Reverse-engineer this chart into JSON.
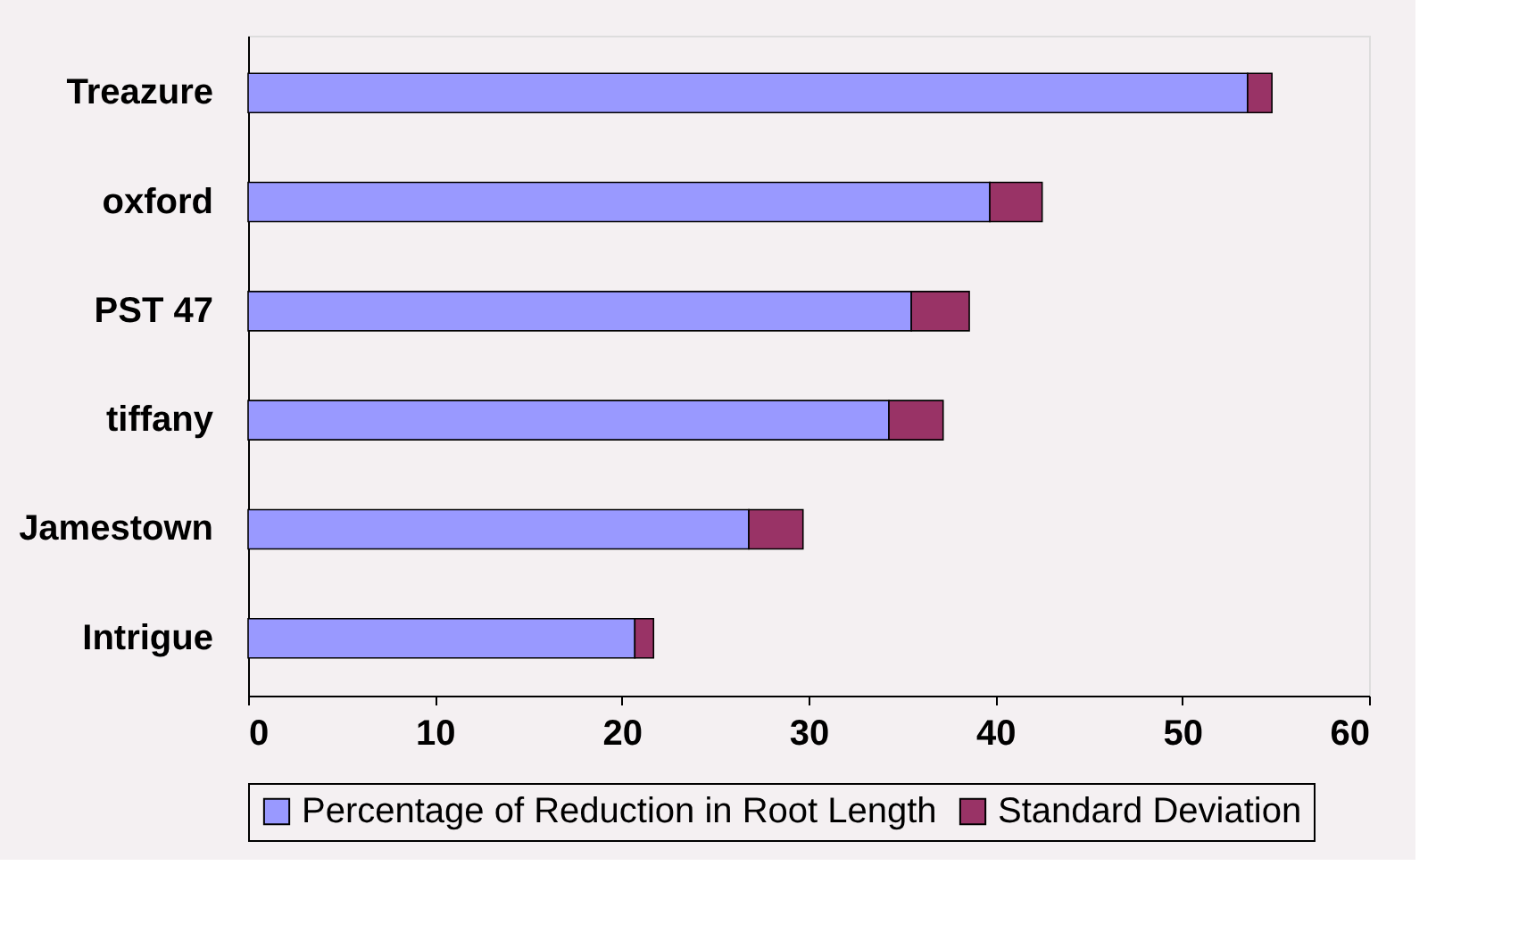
{
  "chart_data": {
    "type": "bar",
    "orientation": "horizontal",
    "stacked": true,
    "categories": [
      "Treazure",
      "oxford",
      "PST 47",
      "tiffany",
      "Jamestown",
      "Intrigue"
    ],
    "series": [
      {
        "name": "Percentage of Reduction in Root Length",
        "color": "#9999ff",
        "values": [
          53.5,
          39.7,
          35.5,
          34.3,
          26.8,
          20.7
        ]
      },
      {
        "name": "Standard Deviation",
        "color": "#993366",
        "values": [
          1.3,
          2.8,
          3.1,
          2.9,
          2.9,
          1.0
        ]
      }
    ],
    "xlim": [
      0,
      60
    ],
    "xticks": [
      0,
      10,
      20,
      30,
      40,
      50,
      60
    ],
    "grid": false,
    "legend": "bottom"
  }
}
